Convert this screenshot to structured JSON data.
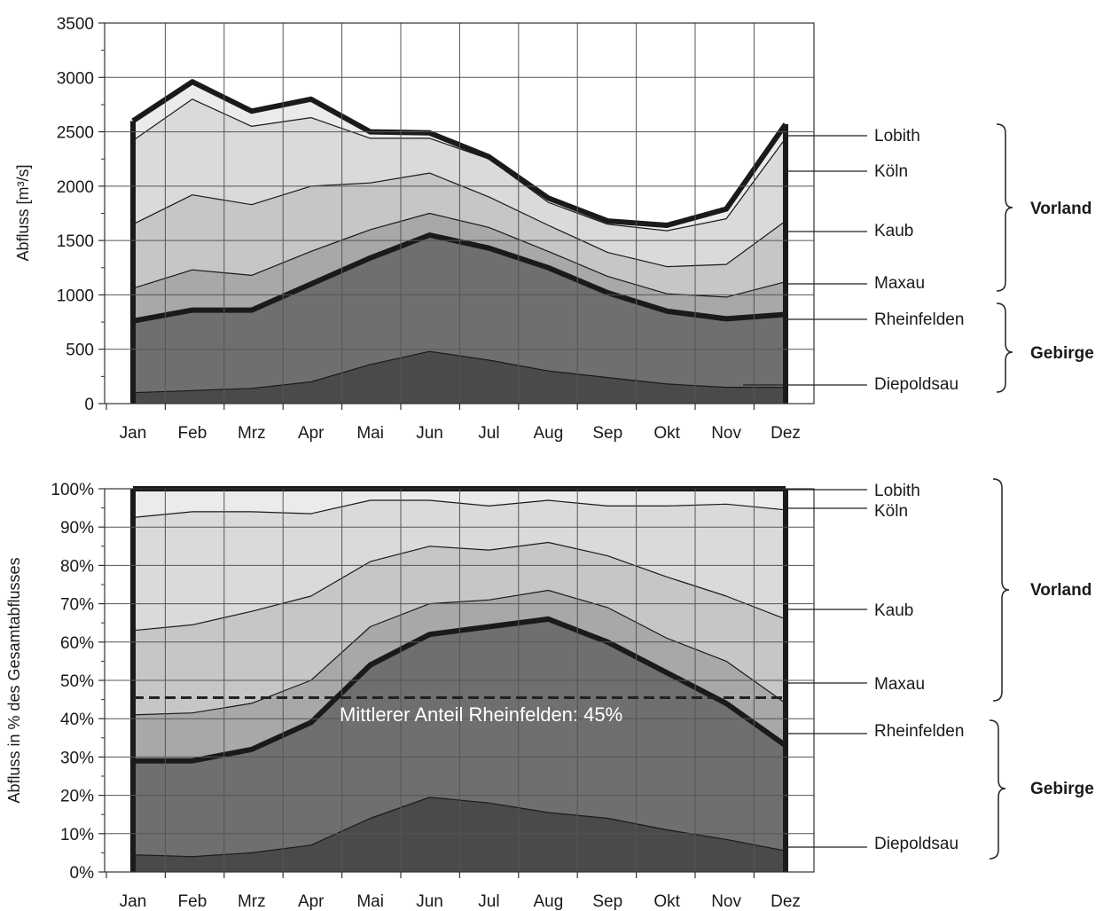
{
  "chart_data": [
    {
      "type": "area",
      "ylabel": "Abfluss [m³/s]",
      "ylim": [
        0,
        3500
      ],
      "yticks": [
        0,
        500,
        1000,
        1500,
        2000,
        2500,
        3000,
        3500
      ],
      "categories": [
        "Jan",
        "Feb",
        "Mrz",
        "Apr",
        "Mai",
        "Jun",
        "Jul",
        "Aug",
        "Sep",
        "Okt",
        "Nov",
        "Dez"
      ],
      "grid": true,
      "series": [
        {
          "name": "Diepoldsau",
          "color": "#4a4a4a",
          "values": [
            100,
            120,
            140,
            200,
            360,
            480,
            400,
            300,
            240,
            180,
            150,
            150
          ]
        },
        {
          "name": "Rheinfelden",
          "color": "#6f6f6f",
          "values": [
            760,
            860,
            860,
            1100,
            1340,
            1550,
            1430,
            1250,
            1020,
            850,
            780,
            820
          ]
        },
        {
          "name": "Maxau",
          "color": "#a8a8a8",
          "values": [
            1060,
            1230,
            1180,
            1400,
            1600,
            1750,
            1620,
            1400,
            1170,
            1010,
            980,
            1120
          ]
        },
        {
          "name": "Kaub",
          "color": "#c6c6c6",
          "values": [
            1650,
            1920,
            1830,
            2000,
            2030,
            2120,
            1900,
            1640,
            1390,
            1260,
            1280,
            1680
          ]
        },
        {
          "name": "Köln",
          "color": "#dadada",
          "values": [
            2420,
            2800,
            2550,
            2630,
            2440,
            2440,
            2250,
            1850,
            1650,
            1590,
            1700,
            2440
          ]
        },
        {
          "name": "Lobith",
          "color": "#ebebeb",
          "values": [
            2600,
            2960,
            2690,
            2800,
            2500,
            2490,
            2270,
            1890,
            1680,
            1640,
            1790,
            2570
          ]
        }
      ],
      "labels": {
        "stations": [
          "Lobith",
          "Köln",
          "Kaub",
          "Maxau",
          "Rheinfelden",
          "Diepoldsau"
        ],
        "regions": [
          "Vorland",
          "Gebirge"
        ]
      }
    },
    {
      "type": "area",
      "ylabel": "Abfluss in % des Gesamtabflusses",
      "ylim": [
        0,
        100
      ],
      "yticks": [
        "0%",
        "10%",
        "20%",
        "30%",
        "40%",
        "50%",
        "60%",
        "70%",
        "80%",
        "90%",
        "100%"
      ],
      "categories": [
        "Jan",
        "Feb",
        "Mrz",
        "Apr",
        "Mai",
        "Jun",
        "Jul",
        "Aug",
        "Sep",
        "Okt",
        "Nov",
        "Dez"
      ],
      "grid": true,
      "series": [
        {
          "name": "Diepoldsau",
          "color": "#4a4a4a",
          "values": [
            4.5,
            4,
            5,
            7,
            14,
            19.5,
            18,
            15.5,
            14,
            11,
            8.5,
            5.5
          ]
        },
        {
          "name": "Rheinfelden",
          "color": "#6f6f6f",
          "values": [
            29,
            29,
            32,
            39,
            54,
            62,
            64,
            66,
            60,
            52,
            44,
            33
          ]
        },
        {
          "name": "Maxau",
          "color": "#a8a8a8",
          "values": [
            41,
            41.5,
            44,
            50,
            64,
            70,
            71,
            73.5,
            69,
            61,
            55,
            44
          ]
        },
        {
          "name": "Kaub",
          "color": "#c6c6c6",
          "values": [
            63,
            64.5,
            68,
            72,
            81,
            85,
            84,
            86,
            82.5,
            77,
            72,
            66
          ]
        },
        {
          "name": "Köln",
          "color": "#dadada",
          "values": [
            92.5,
            94,
            94,
            93.5,
            97,
            97,
            95.5,
            97,
            95.5,
            95.5,
            96,
            94.5
          ]
        },
        {
          "name": "Lobith",
          "color": "#ebebeb",
          "values": [
            100,
            100,
            100,
            100,
            100,
            100,
            100,
            100,
            100,
            100,
            100,
            100
          ]
        }
      ],
      "reference_line": {
        "value": 45.5,
        "label": "Mittlerer Anteil Rheinfelden: 45%"
      },
      "labels": {
        "stations": [
          "Lobith",
          "Köln",
          "Kaub",
          "Maxau",
          "Rheinfelden",
          "Diepoldsau"
        ],
        "regions": [
          "Vorland",
          "Gebirge"
        ]
      }
    }
  ]
}
